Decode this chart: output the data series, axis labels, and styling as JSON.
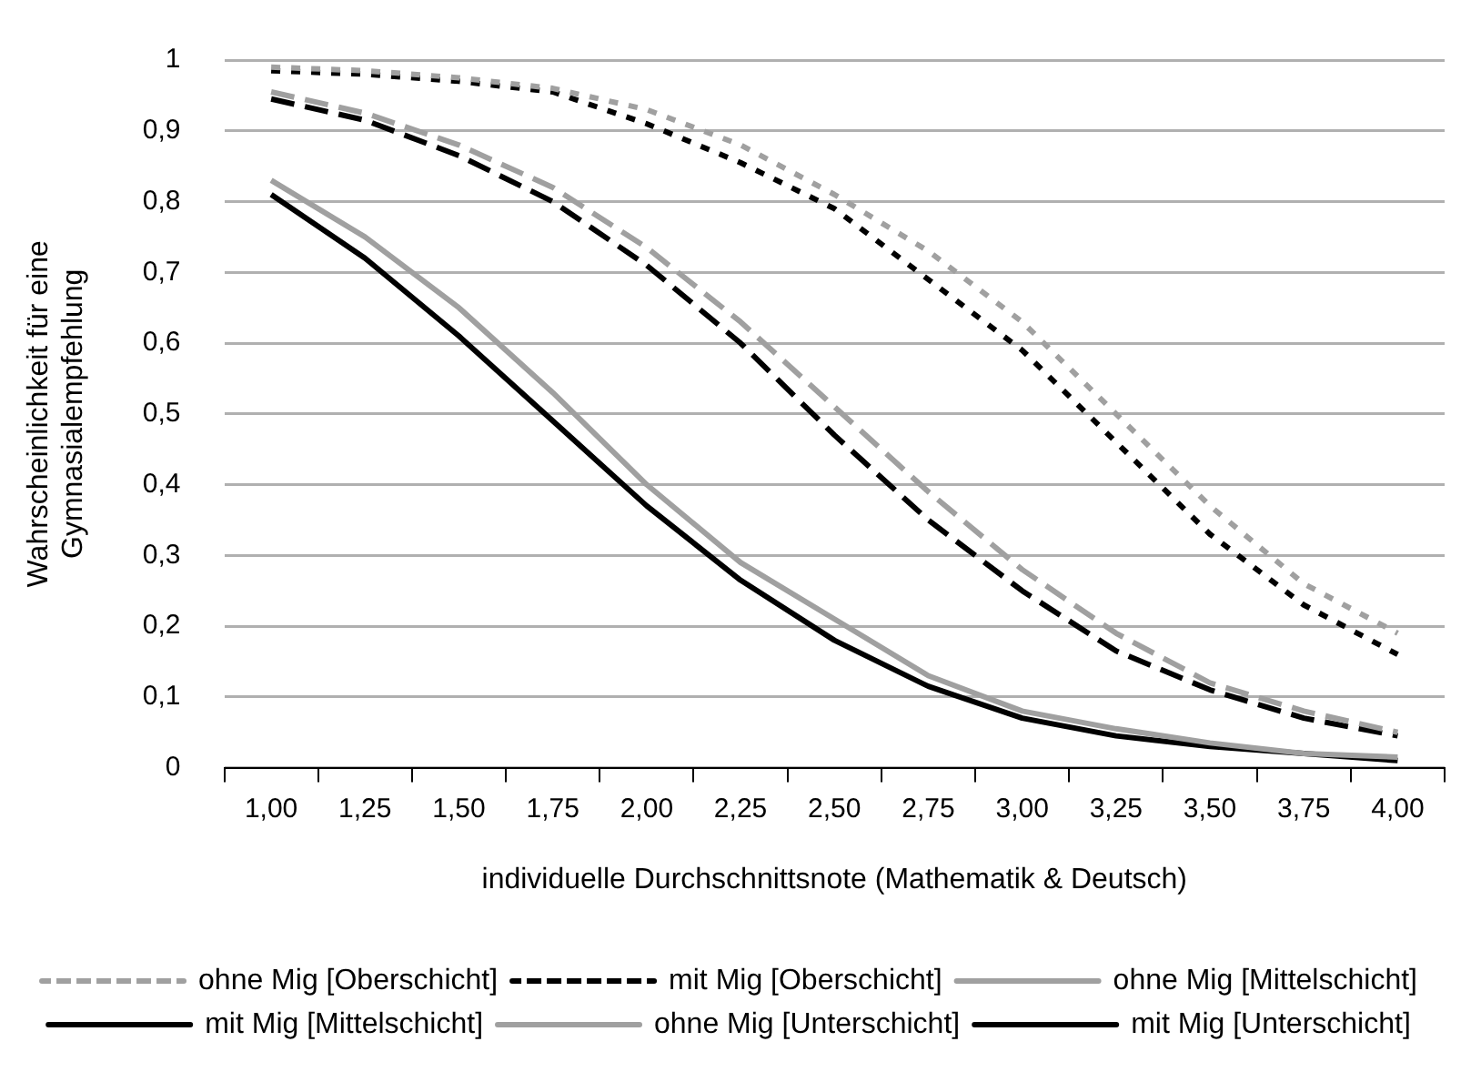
{
  "chart_data": {
    "type": "line",
    "xlabel": "individuelle Durchschnittsnote (Mathematik & Deutsch)",
    "ylabel": "Wahrscheinlichkeit für eine\nGymnasialempfehlung",
    "categories": [
      "1,00",
      "1,25",
      "1,50",
      "1,75",
      "2,00",
      "2,25",
      "2,50",
      "2,75",
      "3,00",
      "3,25",
      "3,50",
      "3,75",
      "4,00"
    ],
    "ylim": [
      0,
      1
    ],
    "yticks": [
      0,
      {
        "value": 0.1,
        "label": "0,1"
      },
      {
        "value": 0.2,
        "label": "0,2"
      },
      {
        "value": 0.3,
        "label": "0,3"
      },
      {
        "value": 0.4,
        "label": "0,4"
      },
      {
        "value": 0.5,
        "label": "0,5"
      },
      {
        "value": 0.6,
        "label": "0,6"
      },
      {
        "value": 0.7,
        "label": "0,7"
      },
      {
        "value": 0.8,
        "label": "0,8"
      },
      {
        "value": 0.9,
        "label": "0,9"
      },
      1
    ],
    "grid": "y",
    "legend": "bottom",
    "marker": "none",
    "series": [
      {
        "name": "ohne Mig [Oberschicht]",
        "color": "#a0a0a0",
        "line_style": "dotted",
        "values": [
          0.99,
          0.985,
          0.975,
          0.96,
          0.93,
          0.88,
          0.81,
          0.73,
          0.63,
          0.5,
          0.37,
          0.26,
          0.19
        ]
      },
      {
        "name": "mit Mig [Oberschicht]",
        "color": "#000000",
        "line_style": "dotted",
        "values": [
          0.985,
          0.98,
          0.97,
          0.955,
          0.91,
          0.855,
          0.79,
          0.69,
          0.59,
          0.46,
          0.33,
          0.23,
          0.16
        ]
      },
      {
        "name": "ohne Mig [Mittelschicht]",
        "color": "#a0a0a0",
        "line_style": "dashed",
        "values": [
          0.955,
          0.925,
          0.88,
          0.82,
          0.735,
          0.63,
          0.51,
          0.39,
          0.28,
          0.19,
          0.12,
          0.08,
          0.05
        ]
      },
      {
        "name": "mit Mig [Mittelschicht]",
        "color": "#000000",
        "line_style": "dashed",
        "values": [
          0.945,
          0.915,
          0.865,
          0.8,
          0.71,
          0.6,
          0.47,
          0.35,
          0.25,
          0.165,
          0.11,
          0.07,
          0.045
        ]
      },
      {
        "name": "ohne Mig [Unterschicht]",
        "color": "#a0a0a0",
        "line_style": "solid",
        "values": [
          0.83,
          0.75,
          0.65,
          0.53,
          0.4,
          0.29,
          0.21,
          0.13,
          0.08,
          0.055,
          0.035,
          0.02,
          0.015
        ]
      },
      {
        "name": "mit Mig [Unterschicht]",
        "color": "#000000",
        "line_style": "solid",
        "values": [
          0.81,
          0.72,
          0.61,
          0.49,
          0.37,
          0.265,
          0.18,
          0.115,
          0.07,
          0.045,
          0.03,
          0.02,
          0.01
        ]
      }
    ]
  }
}
